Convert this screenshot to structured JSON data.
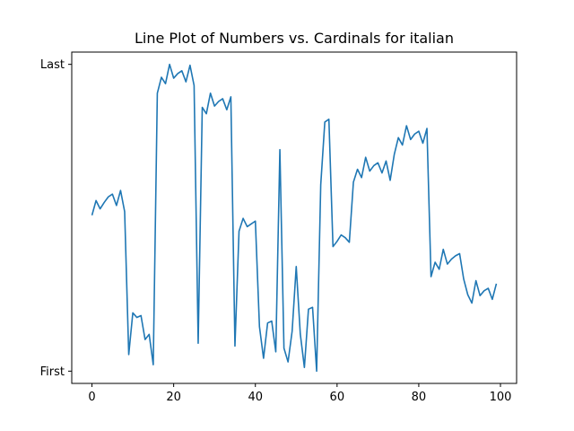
{
  "chart_data": {
    "type": "line",
    "title": "Line Plot of Numbers vs. Cardinals for italian",
    "xlabel": "",
    "ylabel": "",
    "xlim": [
      -4.95,
      103.95
    ],
    "ylim": [
      -0.04,
      1.04
    ],
    "xticks": [
      0,
      20,
      40,
      60,
      80,
      100
    ],
    "yticks": [
      {
        "value": 0,
        "label": "First"
      },
      {
        "value": 1,
        "label": "Last"
      }
    ],
    "grid": false,
    "legend": "none",
    "series": [
      {
        "color": "#1f77b4",
        "x": [
          0,
          1,
          2,
          3,
          4,
          5,
          6,
          7,
          8,
          9,
          10,
          11,
          12,
          13,
          14,
          15,
          16,
          17,
          18,
          19,
          20,
          21,
          22,
          23,
          24,
          25,
          26,
          27,
          28,
          29,
          30,
          31,
          32,
          33,
          34,
          35,
          36,
          37,
          38,
          39,
          40,
          41,
          42,
          43,
          44,
          45,
          46,
          47,
          48,
          49,
          50,
          51,
          52,
          53,
          54,
          55,
          56,
          57,
          58,
          59,
          60,
          61,
          62,
          63,
          64,
          65,
          66,
          67,
          68,
          69,
          70,
          71,
          72,
          73,
          74,
          75,
          76,
          77,
          78,
          79,
          80,
          81,
          82,
          83,
          84,
          85,
          86,
          87,
          88,
          89,
          90,
          91,
          92,
          93,
          94,
          95,
          96,
          97,
          98,
          99
        ],
        "values": [
          0.508,
          0.556,
          0.529,
          0.55,
          0.568,
          0.577,
          0.54,
          0.589,
          0.52,
          0.054,
          0.19,
          0.175,
          0.181,
          0.103,
          0.12,
          0.021,
          0.906,
          0.958,
          0.937,
          1.0,
          0.955,
          0.97,
          0.979,
          0.943,
          0.997,
          0.931,
          0.091,
          0.86,
          0.839,
          0.906,
          0.864,
          0.879,
          0.888,
          0.852,
          0.894,
          0.082,
          0.456,
          0.498,
          0.471,
          0.48,
          0.489,
          0.145,
          0.042,
          0.157,
          0.163,
          0.063,
          0.722,
          0.075,
          0.03,
          0.13,
          0.341,
          0.121,
          0.012,
          0.202,
          0.208,
          0.0,
          0.607,
          0.812,
          0.821,
          0.406,
          0.423,
          0.444,
          0.435,
          0.42,
          0.616,
          0.658,
          0.631,
          0.697,
          0.652,
          0.67,
          0.679,
          0.646,
          0.685,
          0.622,
          0.706,
          0.761,
          0.737,
          0.8,
          0.755,
          0.773,
          0.782,
          0.743,
          0.791,
          0.308,
          0.355,
          0.332,
          0.397,
          0.349,
          0.365,
          0.376,
          0.383,
          0.3,
          0.249,
          0.222,
          0.295,
          0.246,
          0.262,
          0.27,
          0.234,
          0.285
        ]
      }
    ]
  }
}
